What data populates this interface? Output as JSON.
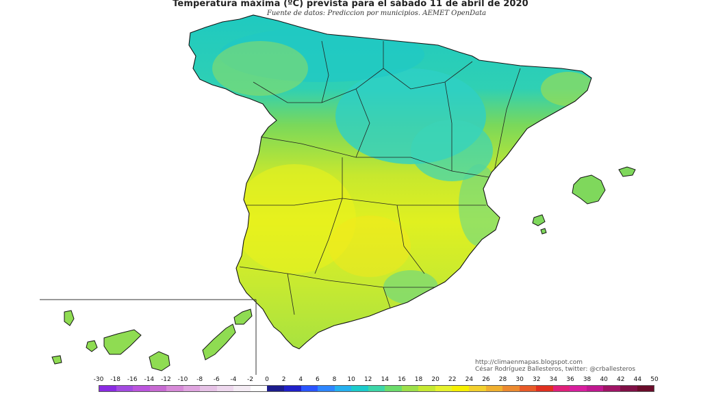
{
  "header": {
    "title": "Temperatura máxima (ºC) prevista para el sábado 11 de abril de 2020",
    "subtitle": "Fuente de datos: Prediccion por municipios. AEMET OpenData"
  },
  "credits": {
    "url": "http://climaenmapas.blogspot.com",
    "author": "César Rodríguez Ballesteros, twitter: @crballesteros"
  },
  "legend": {
    "ticks": [
      "-30",
      "-18",
      "-16",
      "-14",
      "-12",
      "-10",
      "-8",
      "-6",
      "-4",
      "-2",
      "0",
      "2",
      "4",
      "6",
      "8",
      "10",
      "12",
      "14",
      "16",
      "18",
      "20",
      "22",
      "24",
      "26",
      "28",
      "30",
      "32",
      "34",
      "36",
      "38",
      "40",
      "42",
      "44",
      "50"
    ],
    "colors": [
      "#8a2be2",
      "#a34be0",
      "#bb55dd",
      "#c76ad2",
      "#d78ad8",
      "#e0a5e0",
      "#e6c2e6",
      "#eed8ee",
      "#f4ecf4",
      "#ffffff",
      "#1c1c8c",
      "#2020c8",
      "#2a55ff",
      "#2e86ff",
      "#26b0ef",
      "#1ccbcb",
      "#3dd6a8",
      "#6cdc6c",
      "#9de04a",
      "#c6e932",
      "#e6f22e",
      "#f6f000",
      "#f3d02e",
      "#f0b030",
      "#ec8a30",
      "#e85a28",
      "#e03020",
      "#e0207a",
      "#d81e9e",
      "#c01890",
      "#a01466",
      "#801046",
      "#6a0c2a"
    ]
  },
  "map": {
    "regions": [
      "peninsula",
      "balearic-islands",
      "canary-islands"
    ],
    "inset": "canary-islands-inset"
  }
}
